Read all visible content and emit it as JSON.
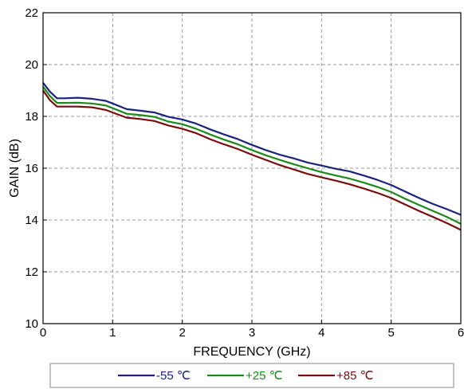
{
  "chart_data": {
    "type": "line",
    "title": "",
    "xlabel": "FREQUENCY (GHz)",
    "ylabel": "GAIN (dB)",
    "xlim": [
      0,
      6
    ],
    "ylim": [
      10,
      22
    ],
    "xticks": [
      0,
      1,
      2,
      3,
      4,
      5,
      6
    ],
    "yticks": [
      10,
      12,
      14,
      16,
      18,
      20,
      22
    ],
    "x_tick_labels": [
      "0",
      "1",
      "2",
      "3",
      "4",
      "5",
      "6"
    ],
    "y_tick_labels": [
      "10",
      "12",
      "14",
      "16",
      "18",
      "20",
      "22"
    ],
    "grid": true,
    "legend_placement": "bottom",
    "x": [
      0,
      0.1,
      0.2,
      0.3,
      0.5,
      0.7,
      0.9,
      1.0,
      1.2,
      1.4,
      1.6,
      1.8,
      2.0,
      2.2,
      2.4,
      2.6,
      2.8,
      3.0,
      3.2,
      3.4,
      3.6,
      3.8,
      4.0,
      4.2,
      4.4,
      4.6,
      4.8,
      5.0,
      5.2,
      5.4,
      5.6,
      5.8,
      6.0
    ],
    "series": [
      {
        "name": "-55 ℃",
        "color": "#1a237e",
        "values": [
          19.3,
          18.95,
          18.7,
          18.7,
          18.72,
          18.68,
          18.6,
          18.5,
          18.28,
          18.22,
          18.15,
          17.98,
          17.88,
          17.72,
          17.5,
          17.3,
          17.12,
          16.9,
          16.7,
          16.52,
          16.38,
          16.22,
          16.1,
          15.98,
          15.88,
          15.72,
          15.55,
          15.35,
          15.1,
          14.85,
          14.62,
          14.42,
          14.2
        ]
      },
      {
        "name": "+25 ℃",
        "color": "#1b8a1b",
        "values": [
          19.15,
          18.78,
          18.52,
          18.52,
          18.53,
          18.5,
          18.42,
          18.32,
          18.1,
          18.05,
          17.98,
          17.8,
          17.7,
          17.52,
          17.3,
          17.1,
          16.92,
          16.7,
          16.5,
          16.32,
          16.15,
          16.0,
          15.85,
          15.72,
          15.6,
          15.45,
          15.28,
          15.08,
          14.82,
          14.58,
          14.35,
          14.12,
          13.85
        ]
      },
      {
        "name": "+85 ℃",
        "color": "#7b0c0c",
        "values": [
          19.0,
          18.62,
          18.38,
          18.38,
          18.38,
          18.35,
          18.25,
          18.15,
          17.95,
          17.9,
          17.82,
          17.65,
          17.52,
          17.35,
          17.12,
          16.92,
          16.74,
          16.52,
          16.32,
          16.12,
          15.95,
          15.78,
          15.65,
          15.52,
          15.38,
          15.22,
          15.05,
          14.85,
          14.6,
          14.35,
          14.12,
          13.88,
          13.62
        ]
      }
    ]
  }
}
